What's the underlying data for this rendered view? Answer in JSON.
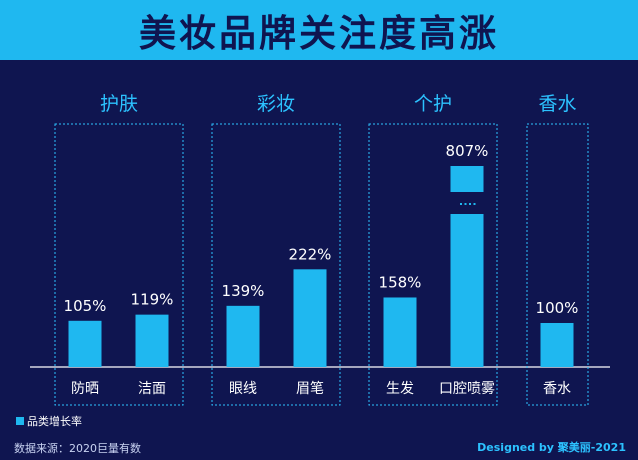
{
  "title": "美妆品牌关注度高涨",
  "footer": {
    "source": "数据来源：2020巨量有数",
    "credit": "Designed by 聚美丽-2021"
  },
  "colors": {
    "background": "#0f1550",
    "banner": "#1fb8f0",
    "bar": "#1fb8f0",
    "text": "#ffffff",
    "group_label": "#2cc2ff"
  },
  "chart_data": {
    "type": "bar",
    "groups": [
      "护肤",
      "彩妆",
      "个护",
      "香水"
    ],
    "categories": [
      "防晒",
      "洁面",
      "眼线",
      "眉笔",
      "生发",
      "口腔喷雾",
      "香水"
    ],
    "category_group": [
      "护肤",
      "护肤",
      "彩妆",
      "彩妆",
      "个护",
      "个护",
      "香水"
    ],
    "values": [
      105,
      119,
      139,
      222,
      158,
      807,
      100
    ],
    "value_labels": [
      "105%",
      "119%",
      "139%",
      "222%",
      "158%",
      "807%",
      "100%"
    ],
    "unit": "%",
    "legend": "品类增长率",
    "legend_position": "bottom-left",
    "broken_axis_value": 807,
    "grid": false
  }
}
